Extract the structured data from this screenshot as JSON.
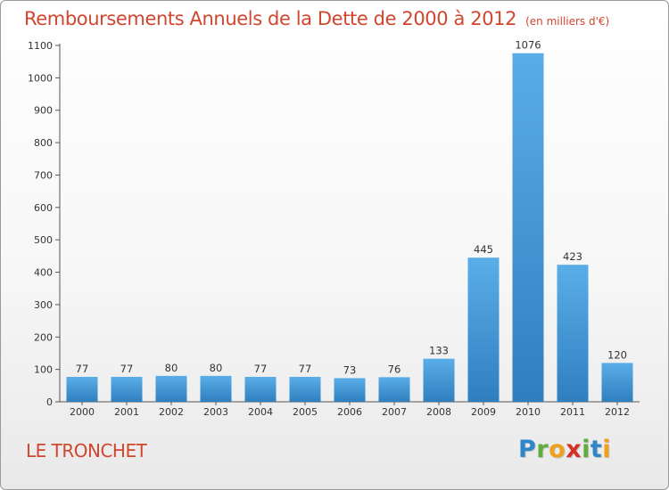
{
  "header": {
    "title": "Remboursements Annuels de la Dette de 2000 à 2012",
    "subtitle": "(en milliers d'€)"
  },
  "footer": {
    "commune": "LE TRONCHET",
    "logo_letters": [
      {
        "ch": "P",
        "color": "#2e86c8"
      },
      {
        "ch": "r",
        "color": "#5fae3b"
      },
      {
        "ch": "o",
        "color": "#f0a01c"
      },
      {
        "ch": "x",
        "color": "#d6302b"
      },
      {
        "ch": "i",
        "color": "#5fae3b"
      },
      {
        "ch": "t",
        "color": "#2e86c8"
      },
      {
        "ch": "i",
        "color": "#f0a01c"
      }
    ]
  },
  "chart_data": {
    "type": "bar",
    "title": "Remboursements Annuels de la Dette de 2000 à 2012",
    "subtitle": "(en milliers d'€)",
    "xlabel": "",
    "ylabel": "",
    "categories": [
      "2000",
      "2001",
      "2002",
      "2003",
      "2004",
      "2005",
      "2006",
      "2007",
      "2008",
      "2009",
      "2010",
      "2011",
      "2012"
    ],
    "values": [
      77,
      77,
      80,
      80,
      77,
      77,
      73,
      76,
      133,
      445,
      1076,
      423,
      120
    ],
    "ylim": [
      0,
      1100
    ],
    "yticks": [
      0,
      100,
      200,
      300,
      400,
      500,
      600,
      700,
      800,
      900,
      1000,
      1100
    ],
    "grid": false,
    "legend": "none",
    "colors": {
      "bar_light": "#5aaee8",
      "bar_dark": "#2f7fbf",
      "title": "#d0462f",
      "axis": "#555555"
    }
  }
}
